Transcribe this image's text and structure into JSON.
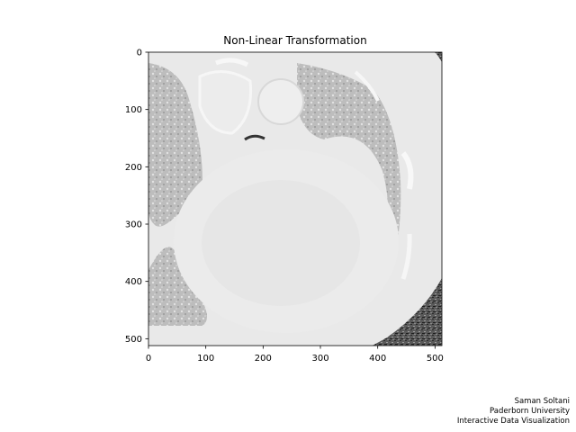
{
  "chart_data": {
    "type": "heatmap",
    "title": "Non-Linear Transformation",
    "xlabel": "",
    "ylabel": "",
    "xlim": [
      0,
      512
    ],
    "ylim": [
      512,
      0
    ],
    "x_ticks": [
      0,
      100,
      200,
      300,
      400,
      500
    ],
    "y_ticks": [
      0,
      100,
      200,
      300,
      400,
      500
    ],
    "colormap": "gray",
    "grid": false,
    "image_content": "axial CT slice of the chest (heart and lungs) after a non-linear intensity transformation"
  },
  "credits": {
    "line1": "Saman Soltani",
    "line2": "Paderborn University",
    "line3": "Interactive Data Visualization"
  },
  "colors": {
    "background": "#ffffff",
    "axes": "#000000",
    "outer_air": "#6e6e6e",
    "body_tissue": "#e8e8e8",
    "lung": "#b8b8b8"
  }
}
